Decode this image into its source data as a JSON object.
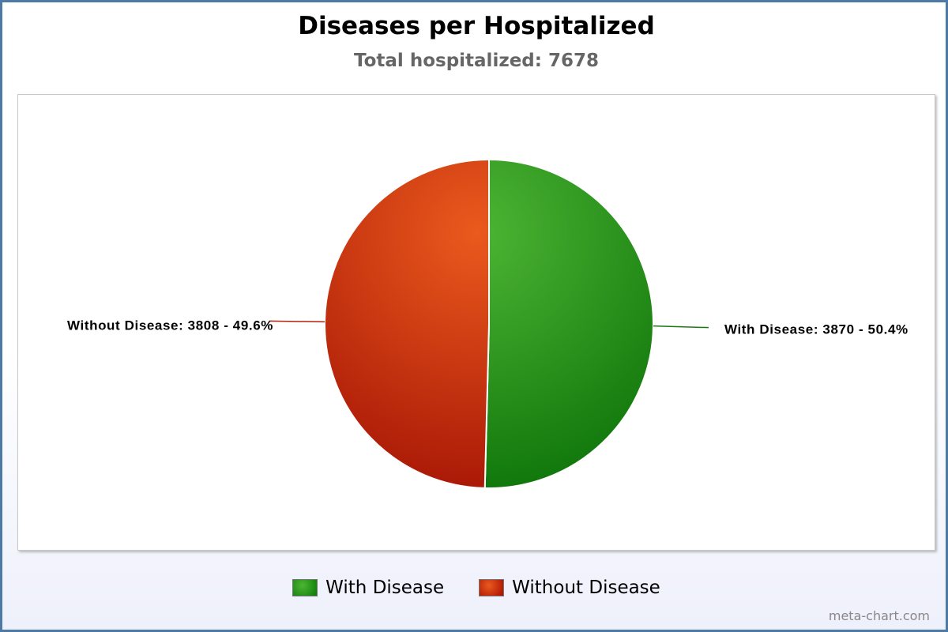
{
  "chart_data": {
    "type": "pie",
    "title": "Diseases per Hospitalized",
    "subtitle": "Total hospitalized: 7678",
    "slices": [
      {
        "name": "With Disease",
        "value": 3870,
        "label": "With Disease: 3870 - 50.4%",
        "color": "#1f8a13"
      },
      {
        "name": "Without Disease",
        "value": 3808,
        "label": "Without Disease: 3808 - 49.6%",
        "color": "#c9280f"
      }
    ],
    "legend": {
      "position": "bottom-center"
    }
  },
  "credit": "meta-chart.com"
}
